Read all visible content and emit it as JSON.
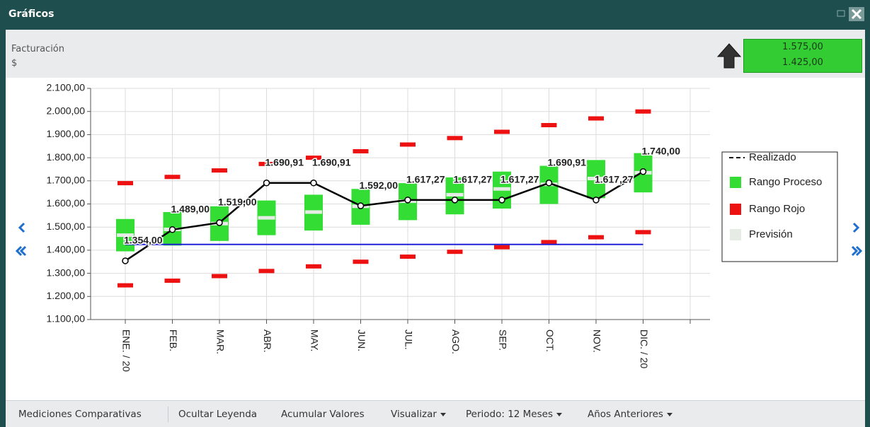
{
  "window": {
    "title": "Gráficos"
  },
  "header": {
    "title": "Facturación",
    "unit": "$",
    "upper": "1.575,00",
    "lower": "1.425,00"
  },
  "toolbar": [
    "Mediciones Comparativas",
    "Ocultar Leyenda",
    "Acumular Valores",
    "Visualizar",
    "Periodo: 12 Meses",
    "Años Anteriores"
  ],
  "chart_data": {
    "type": "range-line",
    "categories": [
      "ENE. / 20",
      "FEB.",
      "MAR.",
      "ABR.",
      "MAY.",
      "JUN.",
      "JUL.",
      "AGO.",
      "SEP.",
      "OCT.",
      "NOV.",
      "DIC. / 20",
      null
    ],
    "ylim": [
      1100,
      2100
    ],
    "yticks": [
      {
        "value": 1100,
        "label": "1.100,00"
      },
      {
        "value": 1200,
        "label": "1.200,00"
      },
      {
        "value": 1300,
        "label": "1.300,00"
      },
      {
        "value": 1400,
        "label": "1.400,00"
      },
      {
        "value": 1500,
        "label": "1.500,00"
      },
      {
        "value": 1600,
        "label": "1.600,00"
      },
      {
        "value": 1700,
        "label": "1.700,00"
      },
      {
        "value": 1800,
        "label": "1.800,00"
      },
      {
        "value": 1900,
        "label": "1.900,00"
      },
      {
        "value": 2000,
        "label": "2.000,00"
      },
      {
        "value": 2100,
        "label": "2.100,00"
      }
    ],
    "grid": true,
    "legend": "right",
    "target": {
      "value": 1425,
      "color": "#2020d8"
    },
    "series": [
      {
        "name": "Realizado",
        "color": "#000000",
        "values": [
          1354,
          1489,
          1519,
          1690.91,
          1690.91,
          1592,
          1617.27,
          1617.27,
          1617.27,
          1690.91,
          1617.27,
          1740,
          null
        ],
        "value_labels": [
          "1.354,00",
          "1.489,00",
          "1.519,00",
          "1.690,91",
          "1.690,91",
          "1.592,00",
          "1.617,27",
          "1.617,27",
          "1.617,27",
          "1.690,91",
          "1.617,27",
          "1.740,00",
          null
        ]
      },
      {
        "name": "Rango Proceso",
        "color": "#33dd33",
        "low": [
          1395,
          1420,
          1440,
          1465,
          1485,
          1510,
          1530,
          1555,
          1580,
          1600,
          1625,
          1650,
          null
        ],
        "high": [
          1535,
          1565,
          1590,
          1615,
          1640,
          1665,
          1690,
          1715,
          1740,
          1765,
          1790,
          1820,
          null
        ]
      },
      {
        "name": "Rango Rojo",
        "color": "#ee1111",
        "low": [
          1248,
          1268,
          1288,
          1310,
          1330,
          1350,
          1372,
          1393,
          1413,
          1435,
          1456,
          1478,
          null
        ],
        "high": [
          1690,
          1717,
          1745,
          1773,
          1800,
          1828,
          1857,
          1885,
          1912,
          1941,
          1970,
          2000,
          null
        ]
      },
      {
        "name": "Previsión",
        "color": "#e6ebe6",
        "values": [
          1465,
          1490,
          1515,
          1540,
          1565,
          1590,
          1612,
          1640,
          1665,
          1685,
          1710,
          1735,
          null
        ]
      }
    ]
  }
}
